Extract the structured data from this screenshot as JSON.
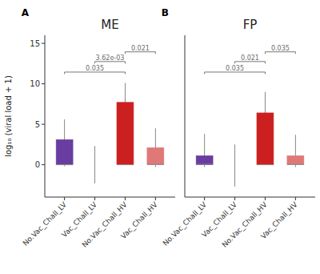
{
  "chart_data": [
    {
      "type": "box",
      "panel_label": "A",
      "title": "ME",
      "y_label": "log₁₀ (viral load + 1)",
      "categories": [
        "No.Vac_Chall_LV",
        "Vac_Chall_LV",
        "No.Vac_Chall_HV",
        "Vac_Chall_HV"
      ],
      "q1": [
        0.0,
        0.0,
        0.0,
        0.0
      ],
      "q3": [
        3.1,
        0.0,
        7.7,
        2.1
      ],
      "median": [
        0.0,
        null,
        0.0,
        0.05
      ],
      "whisker_lows": [
        -0.2,
        -2.3,
        0.4,
        -0.3
      ],
      "whisker_highs": [
        5.6,
        2.3,
        10.1,
        4.5
      ],
      "colors": [
        "#6A3DA0",
        "#bbbbbb",
        "#CC2020",
        "#E07878"
      ],
      "significance": [
        {
          "x1": 0,
          "x2": 2,
          "y": 11.2,
          "label": "0.035"
        },
        {
          "x1": 1,
          "x2": 2,
          "y": 12.5,
          "label": "3.62e-03"
        },
        {
          "x1": 2,
          "x2": 3,
          "y": 13.7,
          "label": "0.021"
        }
      ],
      "ylim": [
        -4,
        16
      ],
      "yticks": [
        0,
        5,
        10,
        15
      ],
      "grid": false
    },
    {
      "type": "box",
      "panel_label": "B",
      "title": "FP",
      "categories": [
        "No.Vac_Chall_LV",
        "Vac_Chall_LV",
        "No.Vac_Chall_HV",
        "Vac_Chall_HV"
      ],
      "q1": [
        0.0,
        0.0,
        0.0,
        0.0
      ],
      "q3": [
        1.1,
        0.0,
        6.4,
        1.1
      ],
      "median": [
        0.05,
        null,
        0.0,
        0.05
      ],
      "whisker_lows": [
        -0.3,
        -2.7,
        0.5,
        -0.3
      ],
      "whisker_highs": [
        3.8,
        2.5,
        9.0,
        3.7
      ],
      "colors": [
        "#6A3DA0",
        "#bbbbbb",
        "#CC2020",
        "#E07878"
      ],
      "significance": [
        {
          "x1": 0,
          "x2": 2,
          "y": 11.2,
          "label": "0.035"
        },
        {
          "x1": 1,
          "x2": 2,
          "y": 12.5,
          "label": "0.021"
        },
        {
          "x1": 2,
          "x2": 3,
          "y": 13.7,
          "label": "0.035"
        }
      ],
      "ylim": [
        -4,
        16
      ],
      "yticks": [
        0,
        5,
        10,
        15
      ],
      "grid": false,
      "tick_labels": "x"
    }
  ]
}
